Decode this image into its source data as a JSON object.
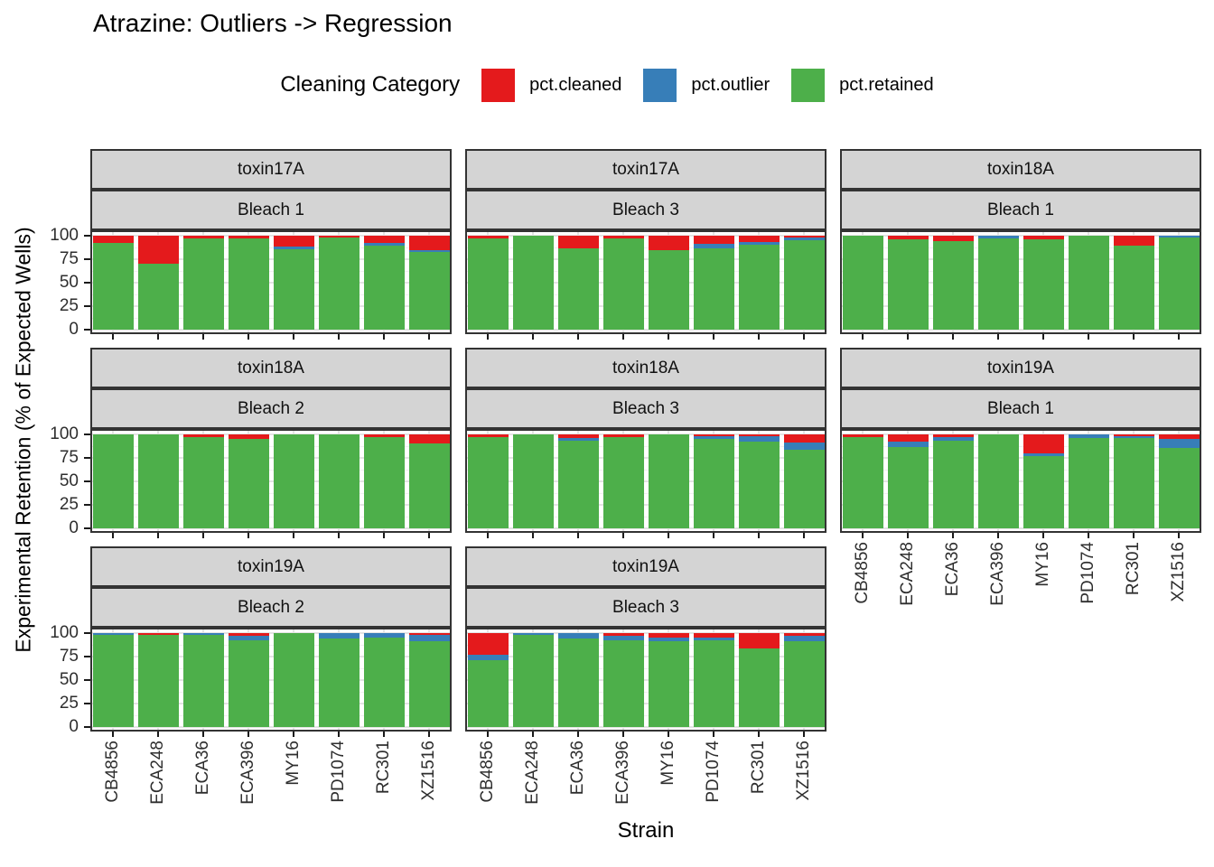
{
  "title": "Atrazine: Outliers -> Regression",
  "legend": {
    "title": "Cleaning Category",
    "items": [
      {
        "label": "pct.cleaned",
        "color": "#E41A1C"
      },
      {
        "label": "pct.outlier",
        "color": "#377EB8"
      },
      {
        "label": "pct.retained",
        "color": "#4DAF4A"
      }
    ]
  },
  "chart_data": {
    "type": "bar",
    "stacked": true,
    "title": "Atrazine: Outliers -> Regression",
    "xlabel": "Strain",
    "ylabel": "Experimental Retention (% of Expected Wells)",
    "ylim": [
      0,
      100
    ],
    "yticks": [
      0,
      25,
      50,
      75,
      100
    ],
    "grid": true,
    "legend_position": "top",
    "categories": [
      "CB4856",
      "ECA248",
      "ECA36",
      "ECA396",
      "MY16",
      "PD1074",
      "RC301",
      "XZ1516"
    ],
    "series_order": [
      "pct.cleaned",
      "pct.outlier",
      "pct.retained"
    ],
    "series_colors": {
      "pct.cleaned": "#E41A1C",
      "pct.outlier": "#377EB8",
      "pct.retained": "#4DAF4A"
    },
    "stack_order_top_to_bottom": [
      "pct.cleaned",
      "pct.outlier",
      "pct.retained"
    ],
    "facet_layout": {
      "rows": 3,
      "cols": 3,
      "note": "bottom-right cell empty"
    },
    "panels": [
      {
        "row": 0,
        "col": 0,
        "facet_toxin": "toxin17A",
        "facet_bleach": "Bleach 1",
        "series": {
          "pct.cleaned": [
            8,
            30,
            3,
            3,
            12,
            2,
            8,
            15
          ],
          "pct.outlier": [
            0,
            0,
            0,
            0,
            2,
            0,
            3,
            2
          ],
          "pct.retained": [
            92,
            70,
            97,
            97,
            86,
            98,
            89,
            83
          ]
        }
      },
      {
        "row": 0,
        "col": 1,
        "facet_toxin": "toxin17A",
        "facet_bleach": "Bleach 3",
        "series": {
          "pct.cleaned": [
            3,
            0,
            13,
            3,
            15,
            9,
            7,
            2
          ],
          "pct.outlier": [
            0,
            0,
            0,
            0,
            0,
            4,
            3,
            3
          ],
          "pct.retained": [
            97,
            100,
            87,
            97,
            85,
            87,
            90,
            95
          ]
        }
      },
      {
        "row": 0,
        "col": 2,
        "facet_toxin": "toxin18A",
        "facet_bleach": "Bleach 1",
        "series": {
          "pct.cleaned": [
            0,
            4,
            6,
            0,
            4,
            0,
            11,
            0
          ],
          "pct.outlier": [
            0,
            0,
            0,
            3,
            0,
            0,
            0,
            2
          ],
          "pct.retained": [
            100,
            96,
            94,
            97,
            96,
            100,
            89,
            98
          ]
        }
      },
      {
        "row": 1,
        "col": 0,
        "facet_toxin": "toxin18A",
        "facet_bleach": "Bleach 2",
        "series": {
          "pct.cleaned": [
            0,
            0,
            3,
            5,
            0,
            0,
            3,
            10
          ],
          "pct.outlier": [
            0,
            0,
            0,
            0,
            0,
            0,
            0,
            0
          ],
          "pct.retained": [
            100,
            100,
            97,
            95,
            100,
            100,
            97,
            90
          ]
        }
      },
      {
        "row": 1,
        "col": 1,
        "facet_toxin": "toxin18A",
        "facet_bleach": "Bleach 3",
        "series": {
          "pct.cleaned": [
            3,
            0,
            4,
            3,
            0,
            2,
            2,
            9
          ],
          "pct.outlier": [
            0,
            0,
            3,
            0,
            0,
            3,
            6,
            7
          ],
          "pct.retained": [
            97,
            100,
            93,
            97,
            100,
            95,
            92,
            84
          ]
        }
      },
      {
        "row": 1,
        "col": 2,
        "facet_toxin": "toxin19A",
        "facet_bleach": "Bleach 1",
        "series": {
          "pct.cleaned": [
            3,
            8,
            3,
            0,
            20,
            0,
            2,
            5
          ],
          "pct.outlier": [
            0,
            5,
            4,
            0,
            3,
            4,
            2,
            9
          ],
          "pct.retained": [
            97,
            87,
            93,
            100,
            77,
            96,
            96,
            86
          ]
        }
      },
      {
        "row": 2,
        "col": 0,
        "facet_toxin": "toxin19A",
        "facet_bleach": "Bleach 2",
        "series": {
          "pct.cleaned": [
            0,
            2,
            0,
            3,
            0,
            0,
            0,
            2
          ],
          "pct.outlier": [
            2,
            0,
            2,
            5,
            0,
            6,
            5,
            7
          ],
          "pct.retained": [
            98,
            98,
            98,
            92,
            100,
            94,
            95,
            91
          ]
        }
      },
      {
        "row": 2,
        "col": 1,
        "facet_toxin": "toxin19A",
        "facet_bleach": "Bleach 3",
        "series": {
          "pct.cleaned": [
            23,
            0,
            0,
            3,
            5,
            5,
            16,
            3
          ],
          "pct.outlier": [
            6,
            2,
            6,
            5,
            4,
            3,
            0,
            6
          ],
          "pct.retained": [
            71,
            98,
            94,
            92,
            91,
            92,
            84,
            91
          ]
        }
      }
    ]
  }
}
